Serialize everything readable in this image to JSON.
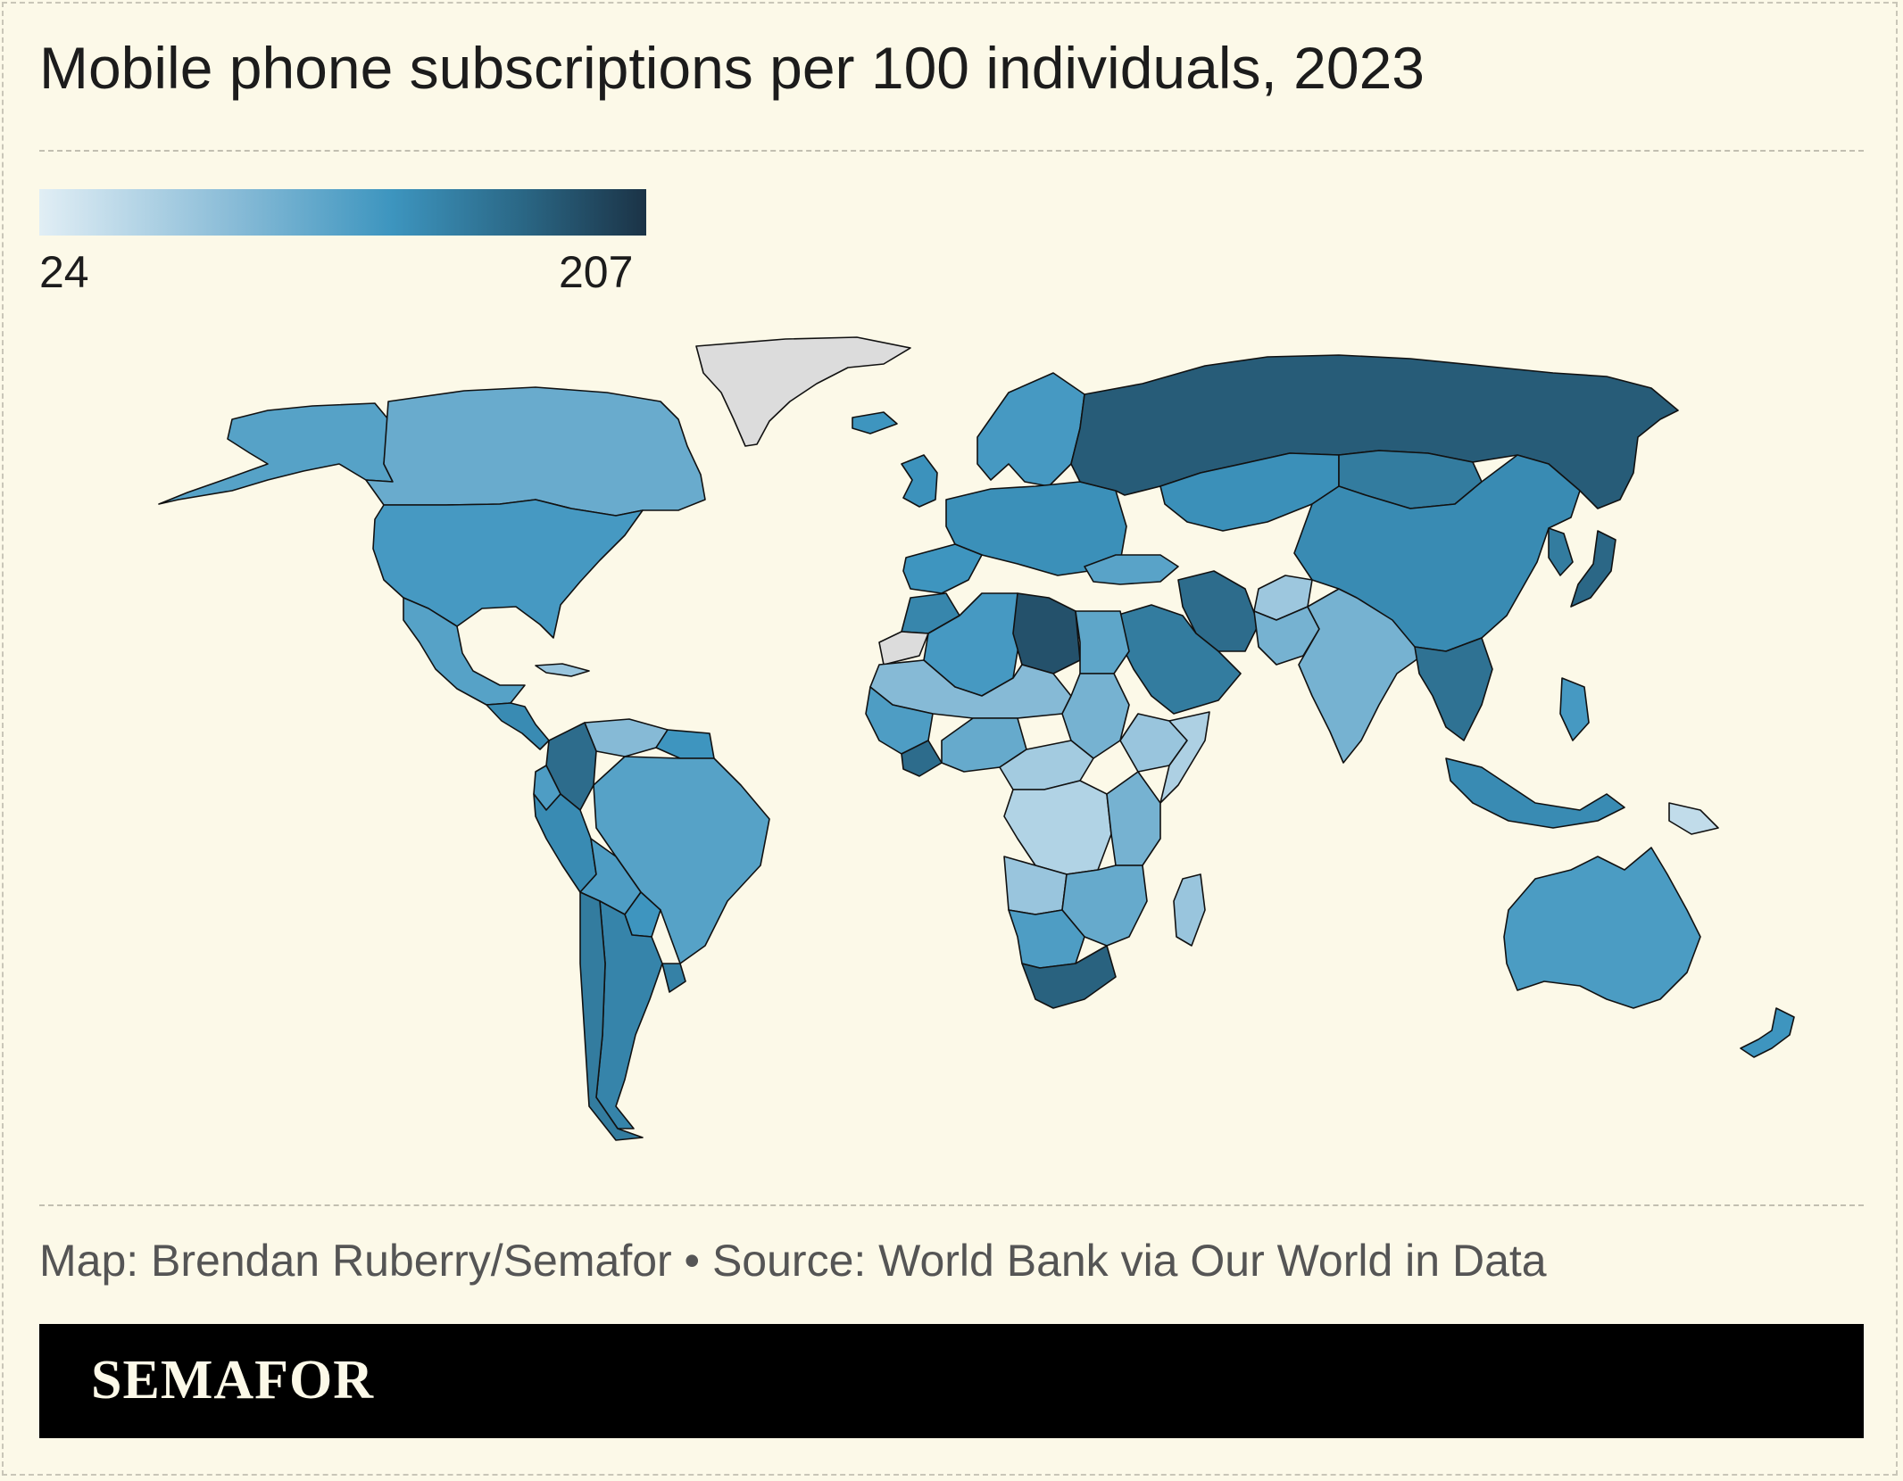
{
  "title": "Mobile phone subscriptions per 100 individuals, 2023",
  "legend": {
    "min_label": "24",
    "max_label": "207",
    "min": 24,
    "max": 207
  },
  "credit": "Map: Brendan Ruberry/Semafor • Source: World Bank via Our World in Data",
  "brand": "SEMAFOR",
  "colors": {
    "background": "#fcf9e8",
    "no_data": "#dcdcdc",
    "scale": [
      "#e1eef5",
      "#86bad6",
      "#3d95bf",
      "#2a6684",
      "#1b3346"
    ]
  },
  "map_data": {
    "type": "choropleth",
    "regions": [
      {
        "id": "greenland",
        "value": null
      },
      {
        "id": "alaska",
        "value": 100
      },
      {
        "id": "canada",
        "value": 88
      },
      {
        "id": "usa",
        "value": 110
      },
      {
        "id": "mexico",
        "value": 100
      },
      {
        "id": "cuba",
        "value": 60
      },
      {
        "id": "central-america",
        "value": 125
      },
      {
        "id": "venezuela",
        "value": 70
      },
      {
        "id": "colombia",
        "value": 155
      },
      {
        "id": "guianas",
        "value": 115
      },
      {
        "id": "ecuador",
        "value": 105
      },
      {
        "id": "peru",
        "value": 125
      },
      {
        "id": "brazil",
        "value": 100
      },
      {
        "id": "bolivia",
        "value": 105
      },
      {
        "id": "paraguay",
        "value": 115
      },
      {
        "id": "chile",
        "value": 140
      },
      {
        "id": "argentina",
        "value": 132
      },
      {
        "id": "uruguay",
        "value": 135
      },
      {
        "id": "iceland",
        "value": 115
      },
      {
        "id": "uk-ireland",
        "value": 118
      },
      {
        "id": "scandinavia",
        "value": 110
      },
      {
        "id": "europe",
        "value": 120
      },
      {
        "id": "iberia",
        "value": 115
      },
      {
        "id": "russia",
        "value": 170
      },
      {
        "id": "kazakhstan",
        "value": 120
      },
      {
        "id": "turkey",
        "value": 98
      },
      {
        "id": "iran",
        "value": 155
      },
      {
        "id": "saudi-arabia",
        "value": 140
      },
      {
        "id": "afghanistan",
        "value": 58
      },
      {
        "id": "pakistan",
        "value": 80
      },
      {
        "id": "india",
        "value": 80
      },
      {
        "id": "china",
        "value": 125
      },
      {
        "id": "mongolia",
        "value": 140
      },
      {
        "id": "southeast-asia",
        "value": 150
      },
      {
        "id": "japan",
        "value": 160
      },
      {
        "id": "korea",
        "value": 140
      },
      {
        "id": "morocco",
        "value": 130
      },
      {
        "id": "western-sahara",
        "value": null
      },
      {
        "id": "algeria",
        "value": 110
      },
      {
        "id": "libya",
        "value": 180
      },
      {
        "id": "egypt",
        "value": 95
      },
      {
        "id": "sahel",
        "value": 70
      },
      {
        "id": "west-africa",
        "value": 105
      },
      {
        "id": "ivory-coast",
        "value": 155
      },
      {
        "id": "nigeria",
        "value": 90
      },
      {
        "id": "sudan",
        "value": 80
      },
      {
        "id": "ethiopia",
        "value": 60
      },
      {
        "id": "somalia",
        "value": 50
      },
      {
        "id": "central-africa",
        "value": 55
      },
      {
        "id": "drc",
        "value": 48
      },
      {
        "id": "east-africa",
        "value": 80
      },
      {
        "id": "angola",
        "value": 60
      },
      {
        "id": "zambia-moz",
        "value": 90
      },
      {
        "id": "namibia-botswana",
        "value": 105
      },
      {
        "id": "south-africa",
        "value": 165
      },
      {
        "id": "madagascar",
        "value": 60
      },
      {
        "id": "indonesia",
        "value": 125
      },
      {
        "id": "philippines",
        "value": 110
      },
      {
        "id": "papua-new-guinea",
        "value": 40
      },
      {
        "id": "australia",
        "value": 107
      },
      {
        "id": "new-zealand",
        "value": 115
      }
    ]
  }
}
